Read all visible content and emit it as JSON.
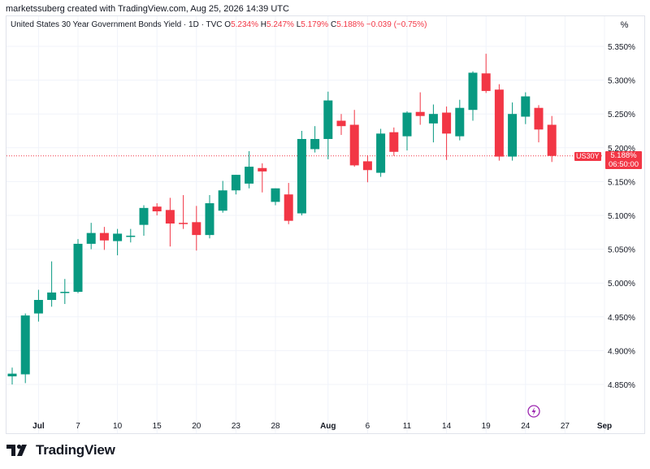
{
  "header": {
    "credit": "marketssuberg created with TradingView.com, Aug 25, 2026 14:39 UTC"
  },
  "legend": {
    "title": "United States 30 Year Government Bonds Yield · 1D · TVC",
    "open_label": "O",
    "open": "5.234%",
    "high_label": "H",
    "high": "5.247%",
    "low_label": "L",
    "low": "5.179%",
    "close_label": "C",
    "close": "5.188%",
    "change": "−0.039 (−0.75%)"
  },
  "scale_mode": "%",
  "price_tag": {
    "symbol": "US30Y",
    "price": "5.188%",
    "countdown": "06:50:00"
  },
  "brand": {
    "name": "TradingView"
  },
  "colors": {
    "up": "#089981",
    "down": "#f23645",
    "grid": "#f0f3fa",
    "text": "#131722"
  },
  "chart_data": {
    "type": "candlestick",
    "title": "United States 30 Year Government Bonds Yield · 1D · TVC",
    "ylim": [
      4.81,
      5.38
    ],
    "y_ticks": [
      "5.350%",
      "5.300%",
      "5.250%",
      "5.200%",
      "5.150%",
      "5.100%",
      "5.050%",
      "5.000%",
      "4.950%",
      "4.900%",
      "4.850%"
    ],
    "y_tick_values": [
      5.35,
      5.3,
      5.25,
      5.2,
      5.15,
      5.1,
      5.05,
      5.0,
      4.95,
      4.9,
      4.85
    ],
    "x_ticks": [
      {
        "label": "Jul",
        "index": 2
      },
      {
        "label": "7",
        "index": 5
      },
      {
        "label": "10",
        "index": 8
      },
      {
        "label": "15",
        "index": 11
      },
      {
        "label": "20",
        "index": 14
      },
      {
        "label": "23",
        "index": 17
      },
      {
        "label": "28",
        "index": 20
      },
      {
        "label": "Aug",
        "index": 24
      },
      {
        "label": "6",
        "index": 27
      },
      {
        "label": "11",
        "index": 30
      },
      {
        "label": "14",
        "index": 33
      },
      {
        "label": "19",
        "index": 36
      },
      {
        "label": "24",
        "index": 39
      },
      {
        "label": "27",
        "index": 42
      },
      {
        "label": "Sep",
        "index": 45
      }
    ],
    "last_price": 5.188,
    "candles": [
      {
        "o": 4.862,
        "h": 4.875,
        "l": 4.85,
        "c": 4.866
      },
      {
        "o": 4.865,
        "h": 4.955,
        "l": 4.852,
        "c": 4.952
      },
      {
        "o": 4.955,
        "h": 4.99,
        "l": 4.943,
        "c": 4.975
      },
      {
        "o": 4.975,
        "h": 5.032,
        "l": 4.965,
        "c": 4.986
      },
      {
        "o": 4.987,
        "h": 5.006,
        "l": 4.969,
        "c": 4.987
      },
      {
        "o": 4.987,
        "h": 5.065,
        "l": 4.985,
        "c": 5.058
      },
      {
        "o": 5.058,
        "h": 5.089,
        "l": 5.05,
        "c": 5.074
      },
      {
        "o": 5.074,
        "h": 5.083,
        "l": 5.049,
        "c": 5.063
      },
      {
        "o": 5.062,
        "h": 5.08,
        "l": 5.041,
        "c": 5.073
      },
      {
        "o": 5.069,
        "h": 5.08,
        "l": 5.06,
        "c": 5.07
      },
      {
        "o": 5.086,
        "h": 5.115,
        "l": 5.07,
        "c": 5.111
      },
      {
        "o": 5.113,
        "h": 5.118,
        "l": 5.1,
        "c": 5.106
      },
      {
        "o": 5.108,
        "h": 5.126,
        "l": 5.054,
        "c": 5.088
      },
      {
        "o": 5.089,
        "h": 5.13,
        "l": 5.08,
        "c": 5.088
      },
      {
        "o": 5.09,
        "h": 5.114,
        "l": 5.048,
        "c": 5.071
      },
      {
        "o": 5.071,
        "h": 5.13,
        "l": 5.066,
        "c": 5.118
      },
      {
        "o": 5.107,
        "h": 5.151,
        "l": 5.104,
        "c": 5.137
      },
      {
        "o": 5.137,
        "h": 5.16,
        "l": 5.131,
        "c": 5.16
      },
      {
        "o": 5.147,
        "h": 5.195,
        "l": 5.14,
        "c": 5.172
      },
      {
        "o": 5.17,
        "h": 5.177,
        "l": 5.134,
        "c": 5.165
      },
      {
        "o": 5.12,
        "h": 5.14,
        "l": 5.115,
        "c": 5.14
      },
      {
        "o": 5.131,
        "h": 5.148,
        "l": 5.087,
        "c": 5.092
      },
      {
        "o": 5.103,
        "h": 5.225,
        "l": 5.1,
        "c": 5.213
      },
      {
        "o": 5.198,
        "h": 5.232,
        "l": 5.193,
        "c": 5.213
      },
      {
        "o": 5.213,
        "h": 5.283,
        "l": 5.183,
        "c": 5.27
      },
      {
        "o": 5.24,
        "h": 5.25,
        "l": 5.219,
        "c": 5.232
      },
      {
        "o": 5.234,
        "h": 5.256,
        "l": 5.172,
        "c": 5.174
      },
      {
        "o": 5.18,
        "h": 5.189,
        "l": 5.149,
        "c": 5.167
      },
      {
        "o": 5.163,
        "h": 5.228,
        "l": 5.157,
        "c": 5.221
      },
      {
        "o": 5.223,
        "h": 5.23,
        "l": 5.188,
        "c": 5.194
      },
      {
        "o": 5.217,
        "h": 5.254,
        "l": 5.196,
        "c": 5.252
      },
      {
        "o": 5.253,
        "h": 5.282,
        "l": 5.234,
        "c": 5.247
      },
      {
        "o": 5.236,
        "h": 5.264,
        "l": 5.208,
        "c": 5.25
      },
      {
        "o": 5.252,
        "h": 5.261,
        "l": 5.182,
        "c": 5.221
      },
      {
        "o": 5.217,
        "h": 5.271,
        "l": 5.211,
        "c": 5.259
      },
      {
        "o": 5.256,
        "h": 5.313,
        "l": 5.24,
        "c": 5.311
      },
      {
        "o": 5.31,
        "h": 5.339,
        "l": 5.281,
        "c": 5.284
      },
      {
        "o": 5.286,
        "h": 5.294,
        "l": 5.181,
        "c": 5.187
      },
      {
        "o": 5.187,
        "h": 5.267,
        "l": 5.181,
        "c": 5.25
      },
      {
        "o": 5.246,
        "h": 5.282,
        "l": 5.235,
        "c": 5.276
      },
      {
        "o": 5.259,
        "h": 5.263,
        "l": 5.208,
        "c": 5.227
      },
      {
        "o": 5.234,
        "h": 5.247,
        "l": 5.179,
        "c": 5.188
      }
    ]
  }
}
